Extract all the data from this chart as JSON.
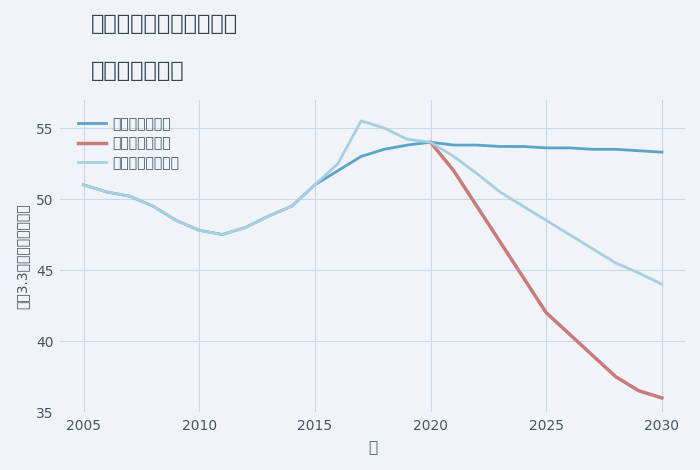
{
  "title_line1": "兵庫県西宮市宝生ヶ丘の",
  "title_line2": "土地の価格推移",
  "xlabel": "年",
  "ylabel": "坪（3.3㎡）単価（万円）",
  "background_color": "#f0f4f8",
  "plot_background": "#f0f4f8",
  "good_scenario": {
    "label": "グッドシナリオ",
    "color": "#5ba3c9",
    "years": [
      2005,
      2006,
      2007,
      2008,
      2009,
      2010,
      2011,
      2012,
      2013,
      2014,
      2015,
      2016,
      2017,
      2018,
      2019,
      2020,
      2021,
      2022,
      2023,
      2024,
      2025,
      2026,
      2027,
      2028,
      2029,
      2030
    ],
    "values": [
      51.0,
      50.5,
      50.2,
      49.5,
      48.5,
      47.8,
      47.5,
      48.0,
      48.8,
      49.5,
      51.0,
      52.0,
      53.0,
      53.5,
      53.8,
      54.0,
      53.8,
      53.8,
      53.7,
      53.7,
      53.6,
      53.6,
      53.5,
      53.5,
      53.4,
      53.3
    ]
  },
  "normal_scenario": {
    "label": "ノーマルシナリオ",
    "color": "#a8cfe0",
    "years": [
      2005,
      2006,
      2007,
      2008,
      2009,
      2010,
      2011,
      2012,
      2013,
      2014,
      2015,
      2016,
      2017,
      2018,
      2019,
      2020,
      2021,
      2022,
      2023,
      2024,
      2025,
      2026,
      2027,
      2028,
      2029,
      2030
    ],
    "values": [
      51.0,
      50.5,
      50.2,
      49.5,
      48.5,
      47.8,
      47.5,
      48.0,
      48.8,
      49.5,
      51.0,
      52.5,
      55.5,
      55.0,
      54.2,
      54.0,
      53.0,
      51.8,
      50.5,
      49.5,
      48.5,
      47.5,
      46.5,
      45.5,
      44.8,
      44.0
    ]
  },
  "bad_scenario": {
    "label": "バッドシナリオ",
    "color": "#c97a7a",
    "years": [
      2020,
      2021,
      2022,
      2023,
      2024,
      2025,
      2026,
      2027,
      2028,
      2029,
      2030
    ],
    "values": [
      54.0,
      52.0,
      49.5,
      47.0,
      44.5,
      42.0,
      40.5,
      39.0,
      37.5,
      36.5,
      36.0
    ]
  },
  "ylim": [
    35,
    57
  ],
  "xlim": [
    2004,
    2031
  ],
  "yticks": [
    35,
    40,
    45,
    50,
    55
  ],
  "xticks": [
    2005,
    2010,
    2015,
    2020,
    2025,
    2030
  ],
  "grid_color": "#c8d8e8",
  "title_color": "#334455",
  "axis_color": "#445566",
  "tick_color": "#445566"
}
